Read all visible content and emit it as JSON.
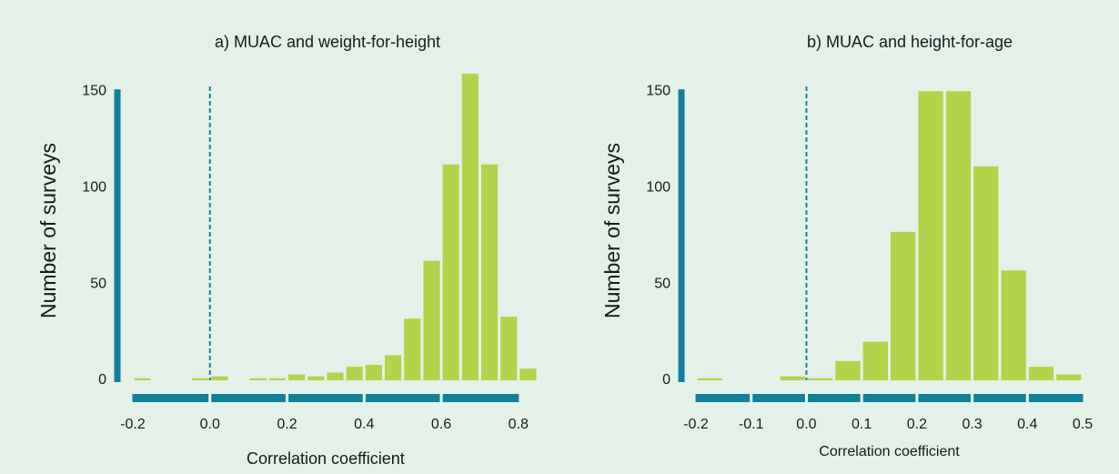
{
  "chart_data": [
    {
      "type": "histogram",
      "title": "a) MUAC and weight-for-height",
      "x_label": "Correlation coefficient",
      "y_label": "Number of surveys",
      "bins": [
        -0.2,
        -0.15,
        -0.1,
        -0.05,
        0,
        0.05,
        0.1,
        0.15,
        0.2,
        0.25,
        0.3,
        0.35,
        0.4,
        0.45,
        0.5,
        0.55,
        0.6,
        0.65,
        0.7,
        0.75,
        0.8,
        0.85
      ],
      "values": [
        1,
        0,
        0,
        1,
        2,
        0,
        1,
        1,
        3,
        2,
        4,
        7,
        8,
        13,
        32,
        62,
        112,
        159,
        112,
        33,
        6
      ],
      "color": "#b3d34a",
      "axis_color": "#13809a",
      "vline": 0,
      "xlim": [
        -0.2,
        0.85
      ],
      "ylim": [
        0,
        160
      ],
      "xticks": [
        -0.2,
        {
          "value": 0,
          "label": "0.0"
        },
        0.2,
        0.4,
        0.6,
        0.8
      ],
      "yticks": [
        0,
        50,
        100,
        150
      ]
    },
    {
      "type": "histogram",
      "title": "b) MUAC and height-for-age",
      "x_label": "Correlation coefficient",
      "y_label": "Number of surveys",
      "bins": [
        -0.2,
        -0.15,
        -0.1,
        -0.05,
        0,
        0.05,
        0.1,
        0.15,
        0.2,
        0.25,
        0.3,
        0.35,
        0.4,
        0.45,
        0.5
      ],
      "values": [
        1,
        0,
        0,
        2,
        1,
        10,
        20,
        77,
        150,
        150,
        111,
        57,
        7,
        3
      ],
      "color": "#b3d34a",
      "axis_color": "#13809a",
      "vline": 0,
      "xlim": [
        -0.2,
        0.5
      ],
      "ylim": [
        0,
        160
      ],
      "xticks": [
        -0.2,
        -0.1,
        {
          "value": 0,
          "label": "0.0"
        },
        0.1,
        0.2,
        0.3,
        0.4,
        0.5
      ],
      "yticks": [
        0,
        50,
        100,
        150
      ]
    }
  ]
}
